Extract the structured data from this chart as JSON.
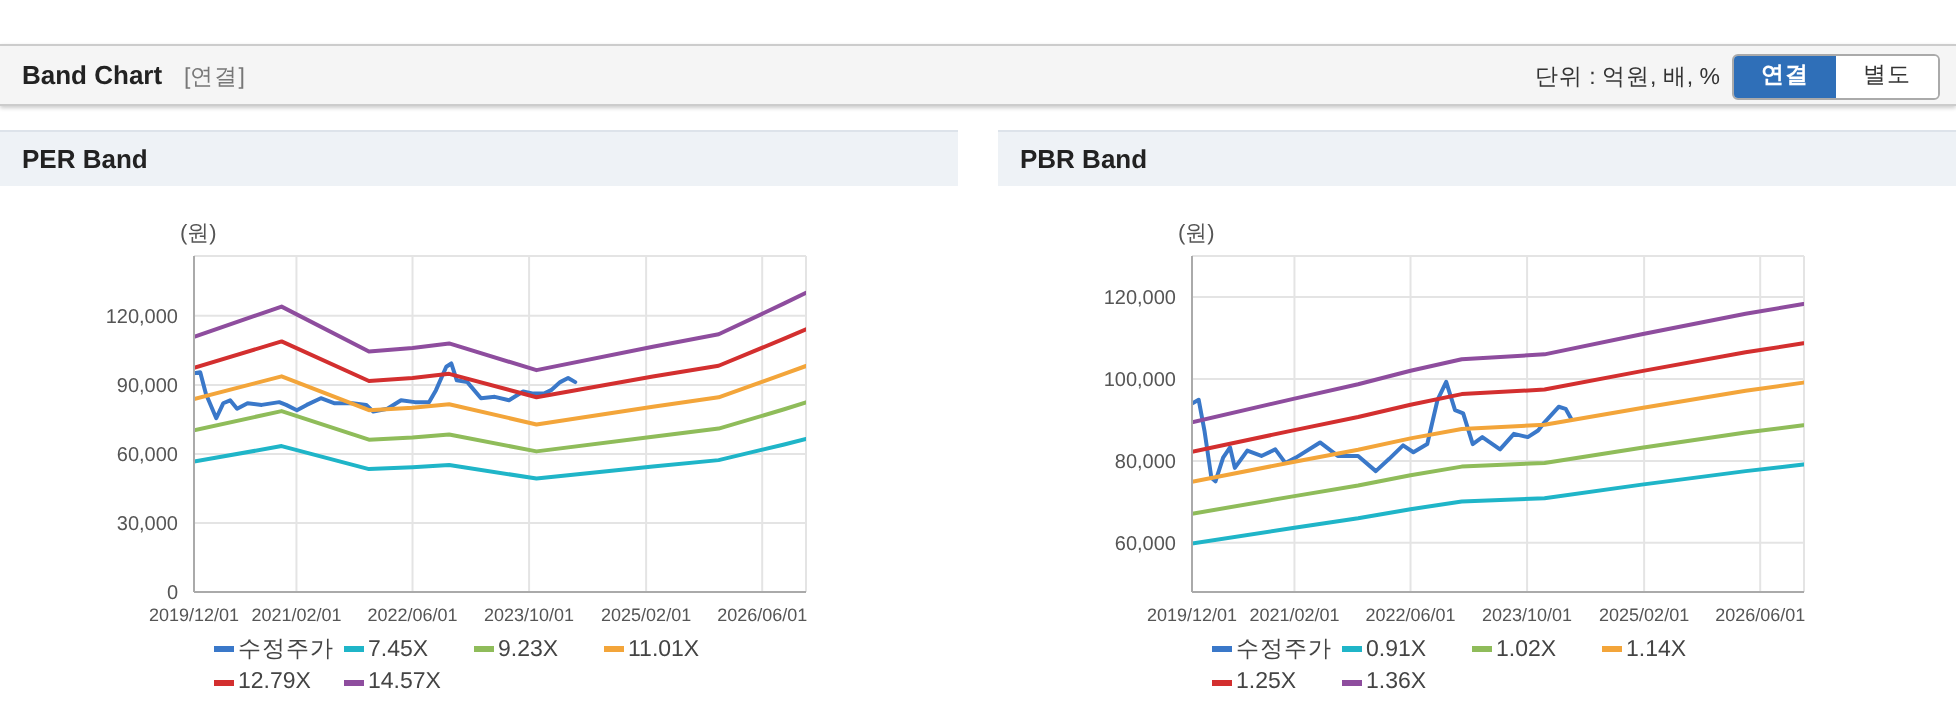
{
  "chart_data": [
    {
      "type": "line",
      "title": "PER Band",
      "ylabel": "(원)",
      "annotations": [
        "Band Chart",
        "[연결]",
        "단위 : 억원, 배, %",
        "연결",
        "별도"
      ],
      "xlim": [
        "2019-12-01",
        "2026-12-01"
      ],
      "ylim": [
        0,
        146000
      ],
      "xticks": [
        {
          "value": "2019-12-01",
          "label": "2019/12/01"
        },
        {
          "value": "2021-02-01",
          "label": "2021/02/01"
        },
        {
          "value": "2022-06-01",
          "label": "2022/06/01"
        },
        {
          "value": "2023-10-01",
          "label": "2023/10/01"
        },
        {
          "value": "2025-02-01",
          "label": "2025/02/01"
        },
        {
          "value": "2026-06-01",
          "label": "2026/06/01"
        }
      ],
      "yticks": [
        {
          "value": 0,
          "label": "0"
        },
        {
          "value": 30000,
          "label": "30,000"
        },
        {
          "value": 60000,
          "label": "60,000"
        },
        {
          "value": 90000,
          "label": "90,000"
        },
        {
          "value": 120000,
          "label": "120,000"
        }
      ],
      "grid": true,
      "legend": "bottom",
      "series": [
        {
          "name": "수정주가",
          "color": "#3a78c9",
          "x": [
            "2019-12-01",
            "2019-12-27",
            "2020-01-20",
            "2020-03-03",
            "2020-04-01",
            "2020-04-30",
            "2020-05-29",
            "2020-07-12",
            "2020-09-09",
            "2020-11-21",
            "2020-12-20",
            "2021-02-03",
            "2021-03-16",
            "2021-05-14",
            "2021-07-11",
            "2021-09-23",
            "2021-11-20",
            "2021-12-19",
            "2022-02-16",
            "2022-04-14",
            "2022-06-11",
            "2022-08-09",
            "2022-09-07",
            "2022-10-20",
            "2022-11-10",
            "2022-12-03",
            "2023-01-16",
            "2023-03-14",
            "2023-05-11",
            "2023-07-09",
            "2023-09-06",
            "2023-10-19",
            "2023-12-02",
            "2024-01-01",
            "2024-02-08",
            "2024-03-12",
            "2024-04-11"
          ],
          "values": [
            95000,
            95500,
            86000,
            75500,
            82000,
            83300,
            79600,
            82000,
            81300,
            82500,
            81300,
            79000,
            81300,
            84200,
            82000,
            82000,
            81300,
            78400,
            79600,
            83300,
            82500,
            82500,
            87700,
            97900,
            99300,
            92000,
            91200,
            84200,
            84800,
            83300,
            87100,
            86200,
            86200,
            87700,
            91200,
            93000,
            91200
          ]
        },
        {
          "name": "7.45X",
          "color": "#1fb5c8",
          "x": [
            "2019-12-01",
            "2020-12-01",
            "2021-12-01",
            "2022-06-01",
            "2022-11-01",
            "2023-11-01",
            "2025-03-01",
            "2025-12-01",
            "2026-09-01",
            "2026-12-01"
          ],
          "values": [
            56700,
            63400,
            53400,
            54200,
            55200,
            49300,
            54500,
            57300,
            64100,
            66500
          ]
        },
        {
          "name": "9.23X",
          "color": "#8fbc5a",
          "x": [
            "2019-12-01",
            "2020-12-01",
            "2021-12-01",
            "2022-06-01",
            "2022-11-01",
            "2023-11-01",
            "2025-03-01",
            "2025-12-01",
            "2026-09-01",
            "2026-12-01"
          ],
          "values": [
            70300,
            78600,
            66200,
            67100,
            68400,
            61100,
            67500,
            71000,
            79400,
            82400
          ]
        },
        {
          "name": "11.01X",
          "color": "#f3a53a",
          "x": [
            "2019-12-01",
            "2020-12-01",
            "2021-12-01",
            "2022-06-01",
            "2022-11-01",
            "2023-11-01",
            "2025-03-01",
            "2025-12-01",
            "2026-09-01",
            "2026-12-01"
          ],
          "values": [
            83800,
            93700,
            79000,
            80100,
            81600,
            72800,
            80500,
            84600,
            94800,
            98200
          ]
        },
        {
          "name": "12.79X",
          "color": "#d32f2f",
          "x": [
            "2019-12-01",
            "2020-12-01",
            "2021-12-01",
            "2022-06-01",
            "2022-11-01",
            "2023-11-01",
            "2025-03-01",
            "2025-12-01",
            "2026-09-01",
            "2026-12-01"
          ],
          "values": [
            97400,
            108900,
            91700,
            93000,
            94800,
            84600,
            93600,
            98300,
            110100,
            114100
          ]
        },
        {
          "name": "14.57X",
          "color": "#8e4d9e",
          "x": [
            "2019-12-01",
            "2020-12-01",
            "2021-12-01",
            "2022-06-01",
            "2022-11-01",
            "2023-11-01",
            "2025-03-01",
            "2025-12-01",
            "2026-09-01",
            "2026-12-01"
          ],
          "values": [
            110900,
            124000,
            104500,
            106000,
            108000,
            96400,
            106600,
            112000,
            125400,
            130000
          ]
        }
      ]
    },
    {
      "type": "line",
      "title": "PBR Band",
      "ylabel": "(원)",
      "xlim": [
        "2019-12-01",
        "2026-12-01"
      ],
      "ylim": [
        48000,
        130000
      ],
      "xticks": [
        {
          "value": "2019-12-01",
          "label": "2019/12/01"
        },
        {
          "value": "2021-02-01",
          "label": "2021/02/01"
        },
        {
          "value": "2022-06-01",
          "label": "2022/06/01"
        },
        {
          "value": "2023-10-01",
          "label": "2023/10/01"
        },
        {
          "value": "2025-02-01",
          "label": "2025/02/01"
        },
        {
          "value": "2026-06-01",
          "label": "2026/06/01"
        }
      ],
      "yticks": [
        {
          "value": 60000,
          "label": "60,000"
        },
        {
          "value": 80000,
          "label": "80,000"
        },
        {
          "value": 100000,
          "label": "100,000"
        },
        {
          "value": 120000,
          "label": "120,000"
        }
      ],
      "grid": true,
      "legend": "bottom",
      "series": [
        {
          "name": "수정주가",
          "color": "#3a78c9",
          "x": [
            "2019-12-01",
            "2019-12-29",
            "2020-01-22",
            "2020-02-20",
            "2020-03-08",
            "2020-04-09",
            "2020-05-08",
            "2020-05-28",
            "2020-07-19",
            "2020-09-16",
            "2020-11-13",
            "2020-12-25",
            "2021-02-07",
            "2021-05-19",
            "2021-08-01",
            "2021-10-25",
            "2022-01-07",
            "2022-03-04",
            "2022-05-01",
            "2022-06-13",
            "2022-08-10",
            "2022-09-22",
            "2022-10-28",
            "2022-12-04",
            "2023-01-07",
            "2023-02-16",
            "2023-03-28",
            "2023-06-10",
            "2023-08-07",
            "2023-10-04",
            "2023-11-16",
            "2023-12-13",
            "2024-02-10",
            "2024-03-10",
            "2024-04-01"
          ],
          "values": [
            94000,
            94900,
            87400,
            75900,
            75000,
            80800,
            83300,
            78300,
            82500,
            81200,
            82800,
            79500,
            80800,
            84500,
            81200,
            81200,
            77500,
            80500,
            83800,
            82100,
            84100,
            94900,
            99300,
            92400,
            91600,
            84100,
            85800,
            82800,
            86600,
            85800,
            87400,
            89400,
            93200,
            92700,
            90400
          ]
        },
        {
          "name": "0.91X",
          "color": "#1fb5c8",
          "x": [
            "2019-12-01",
            "2021-02-01",
            "2021-10-25",
            "2022-06-01",
            "2023-01-01",
            "2023-12-13",
            "2025-01-22",
            "2026-04-01",
            "2026-11-28"
          ],
          "values": [
            59800,
            63700,
            66000,
            68200,
            70100,
            70900,
            74200,
            77500,
            79100
          ]
        },
        {
          "name": "1.02X",
          "color": "#8fbc5a",
          "x": [
            "2019-12-01",
            "2021-02-01",
            "2021-10-25",
            "2022-06-01",
            "2023-01-01",
            "2023-12-13",
            "2025-01-22",
            "2026-04-01",
            "2026-11-28"
          ],
          "values": [
            67100,
            71400,
            74000,
            76500,
            78600,
            79500,
            83200,
            86900,
            88700
          ]
        },
        {
          "name": "1.14X",
          "color": "#f3a53a",
          "x": [
            "2019-12-01",
            "2021-02-01",
            "2021-10-25",
            "2022-06-01",
            "2023-01-01",
            "2023-12-13",
            "2025-01-22",
            "2026-04-01",
            "2026-11-28"
          ],
          "values": [
            74900,
            79800,
            82700,
            85500,
            87800,
            88800,
            92900,
            97100,
            99100
          ]
        },
        {
          "name": "1.25X",
          "color": "#d32f2f",
          "x": [
            "2019-12-01",
            "2021-02-01",
            "2021-10-25",
            "2022-06-01",
            "2023-01-01",
            "2023-12-13",
            "2025-01-22",
            "2026-04-01",
            "2026-11-28"
          ],
          "values": [
            82200,
            87500,
            90700,
            93700,
            96300,
            97400,
            101900,
            106500,
            108700
          ]
        },
        {
          "name": "1.36X",
          "color": "#8e4d9e",
          "x": [
            "2019-12-01",
            "2021-02-01",
            "2021-10-25",
            "2022-06-01",
            "2023-01-01",
            "2023-12-13",
            "2025-01-22",
            "2026-04-01",
            "2026-11-28"
          ],
          "values": [
            89400,
            95200,
            98700,
            102000,
            104800,
            106000,
            110900,
            115900,
            118300
          ]
        }
      ]
    }
  ]
}
